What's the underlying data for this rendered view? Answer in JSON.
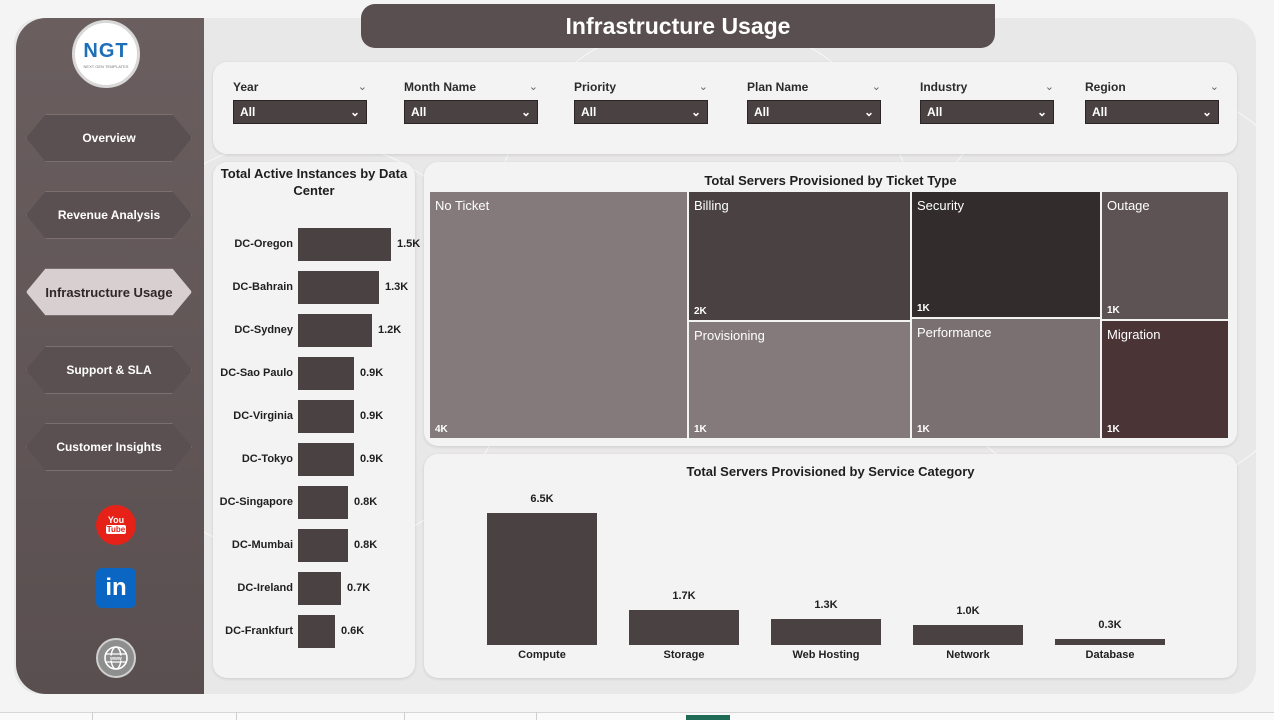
{
  "header": {
    "title": "Infrastructure Usage"
  },
  "logo": {
    "text": "NGT",
    "sub": "NEXT GEN TEMPLATES"
  },
  "sidebar": {
    "nav": [
      {
        "label": "Overview"
      },
      {
        "label": "Revenue Analysis"
      },
      {
        "label": "Infrastructure Usage"
      },
      {
        "label": "Support & SLA"
      },
      {
        "label": "Customer Insights"
      }
    ],
    "active_index": 2,
    "social": [
      {
        "name": "youtube-icon",
        "text_top": "You",
        "text_bottom": "Tube",
        "color": "#e62117"
      },
      {
        "name": "linkedin-icon",
        "text": "in",
        "color": "#0a66c2"
      },
      {
        "name": "globe-icon",
        "text": "www",
        "color": "#8e8e8e"
      }
    ]
  },
  "filters": [
    {
      "label": "Year",
      "value": "All"
    },
    {
      "label": "Month Name",
      "value": "All"
    },
    {
      "label": "Priority",
      "value": "All"
    },
    {
      "label": "Plan Name",
      "value": "All"
    },
    {
      "label": "Industry",
      "value": "All"
    },
    {
      "label": "Region",
      "value": "All"
    }
  ],
  "chart_data": [
    {
      "type": "bar",
      "orientation": "horizontal",
      "title": "Total Active Instances by Data Center",
      "categories": [
        "DC-Oregon",
        "DC-Bahrain",
        "DC-Sydney",
        "DC-Sao Paulo",
        "DC-Virginia",
        "DC-Tokyo",
        "DC-Singapore",
        "DC-Mumbai",
        "DC-Ireland",
        "DC-Frankfurt"
      ],
      "values": [
        1500,
        1300,
        1200,
        900,
        900,
        900,
        800,
        800,
        700,
        600
      ],
      "labels": [
        "1.5K",
        "1.3K",
        "1.2K",
        "0.9K",
        "0.9K",
        "0.9K",
        "0.8K",
        "0.8K",
        "0.7K",
        "0.6K"
      ],
      "color": "#4a4142"
    },
    {
      "type": "treemap",
      "title": "Total Servers Provisioned by Ticket Type",
      "items": [
        {
          "name": "No Ticket",
          "value": 4000,
          "label": "4K",
          "color": "#847a7b"
        },
        {
          "name": "Billing",
          "value": 2000,
          "label": "2K",
          "color": "#4a4142"
        },
        {
          "name": "Provisioning",
          "value": 1000,
          "label": "1K",
          "color": "#847a7b"
        },
        {
          "name": "Security",
          "value": 1000,
          "label": "1K",
          "color": "#322c2d"
        },
        {
          "name": "Performance",
          "value": 1000,
          "label": "1K",
          "color": "#7a7071"
        },
        {
          "name": "Outage",
          "value": 1000,
          "label": "1K",
          "color": "#5e5354"
        },
        {
          "name": "Migration",
          "value": 1000,
          "label": "1K",
          "color": "#4a3435"
        }
      ]
    },
    {
      "type": "bar",
      "title": "Total Servers Provisioned by Service Category",
      "categories": [
        "Compute",
        "Storage",
        "Web Hosting",
        "Network",
        "Database"
      ],
      "values": [
        6500,
        1700,
        1300,
        1000,
        300
      ],
      "labels": [
        "6.5K",
        "1.7K",
        "1.3K",
        "1.0K",
        "0.3K"
      ],
      "color": "#4a4142"
    }
  ]
}
